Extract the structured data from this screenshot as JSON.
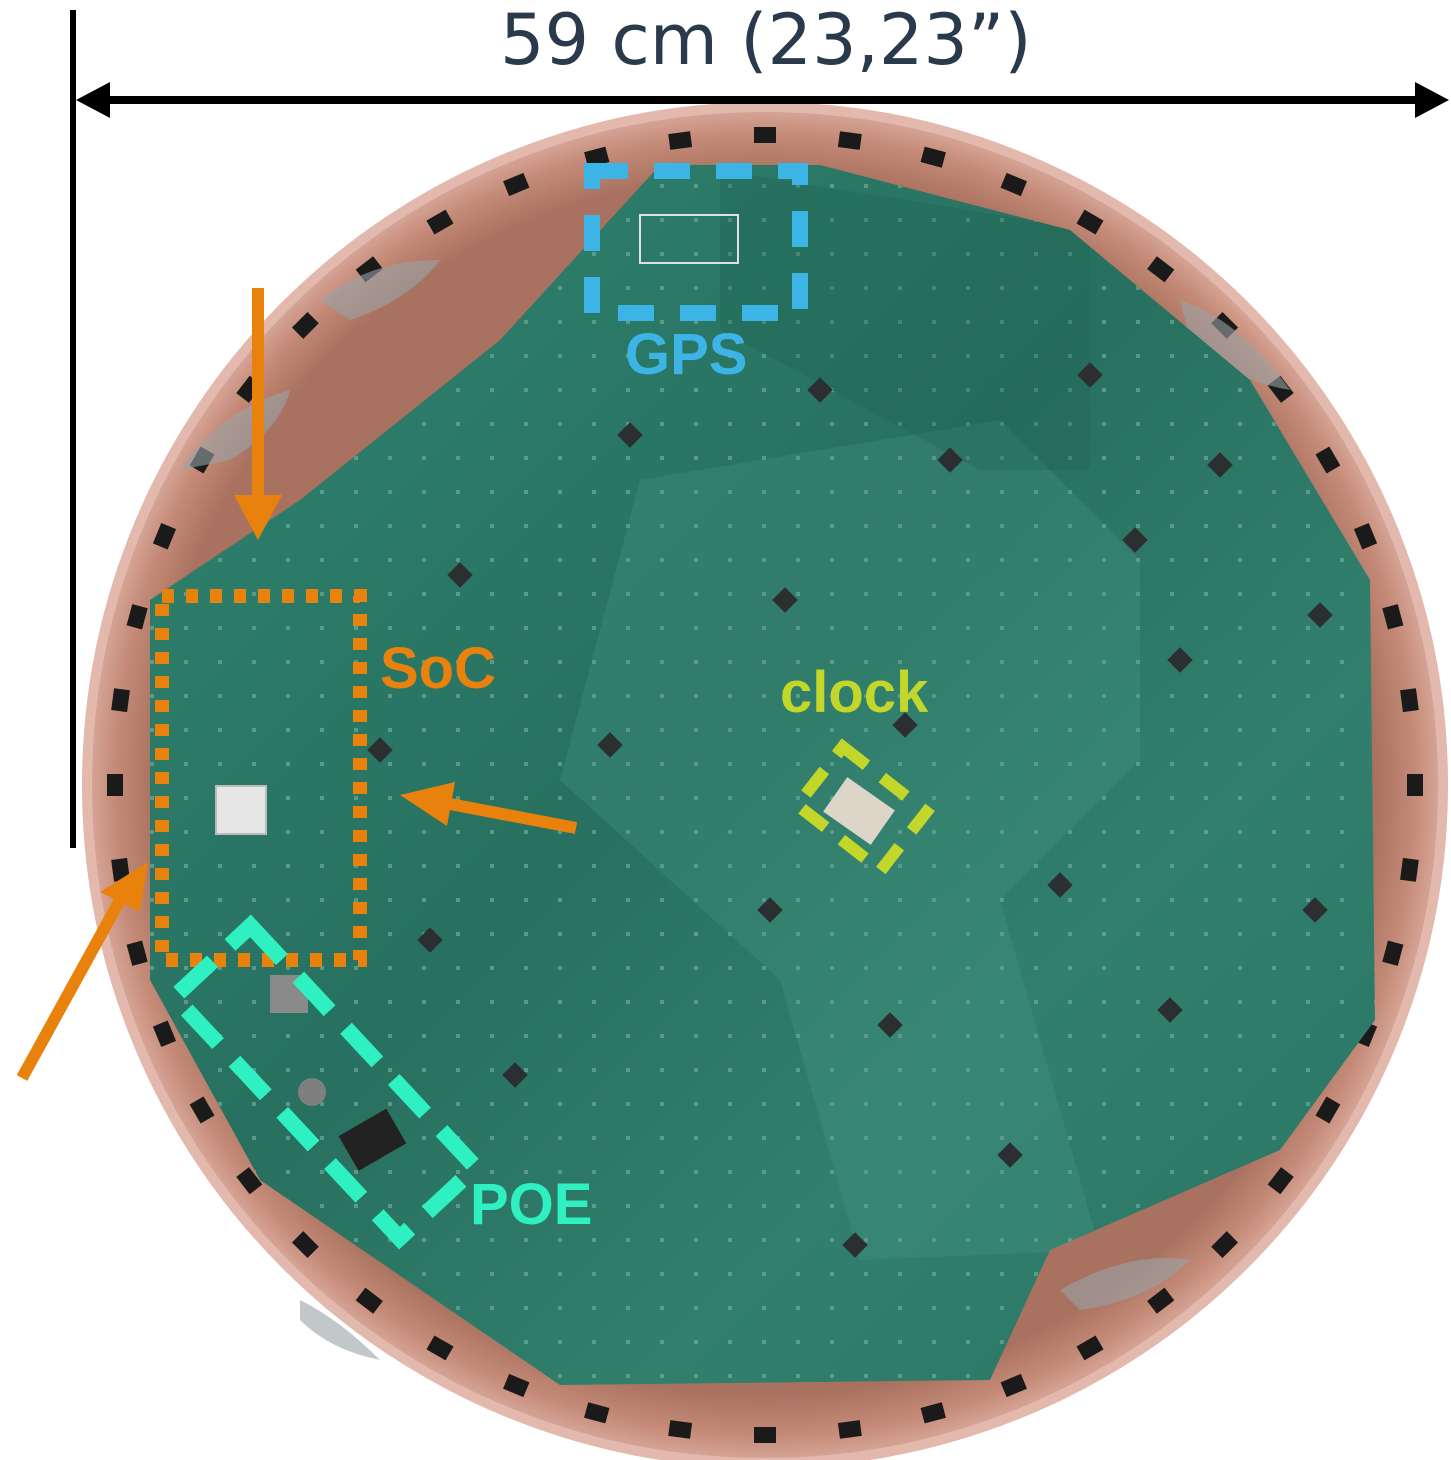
{
  "dimension": {
    "text": "59 cm (23,23”)"
  },
  "labels": {
    "gps": "GPS",
    "soc": "SoC",
    "clock": "clock",
    "poe": "POE"
  },
  "colors": {
    "gps": "#3cb4e6",
    "soc": "#e8820c",
    "clock": "#c3d62a",
    "poe": "#2ef0c0",
    "board": "#2e7f6a",
    "copper_ring": "#b87c6a",
    "dimension": "#000000"
  }
}
